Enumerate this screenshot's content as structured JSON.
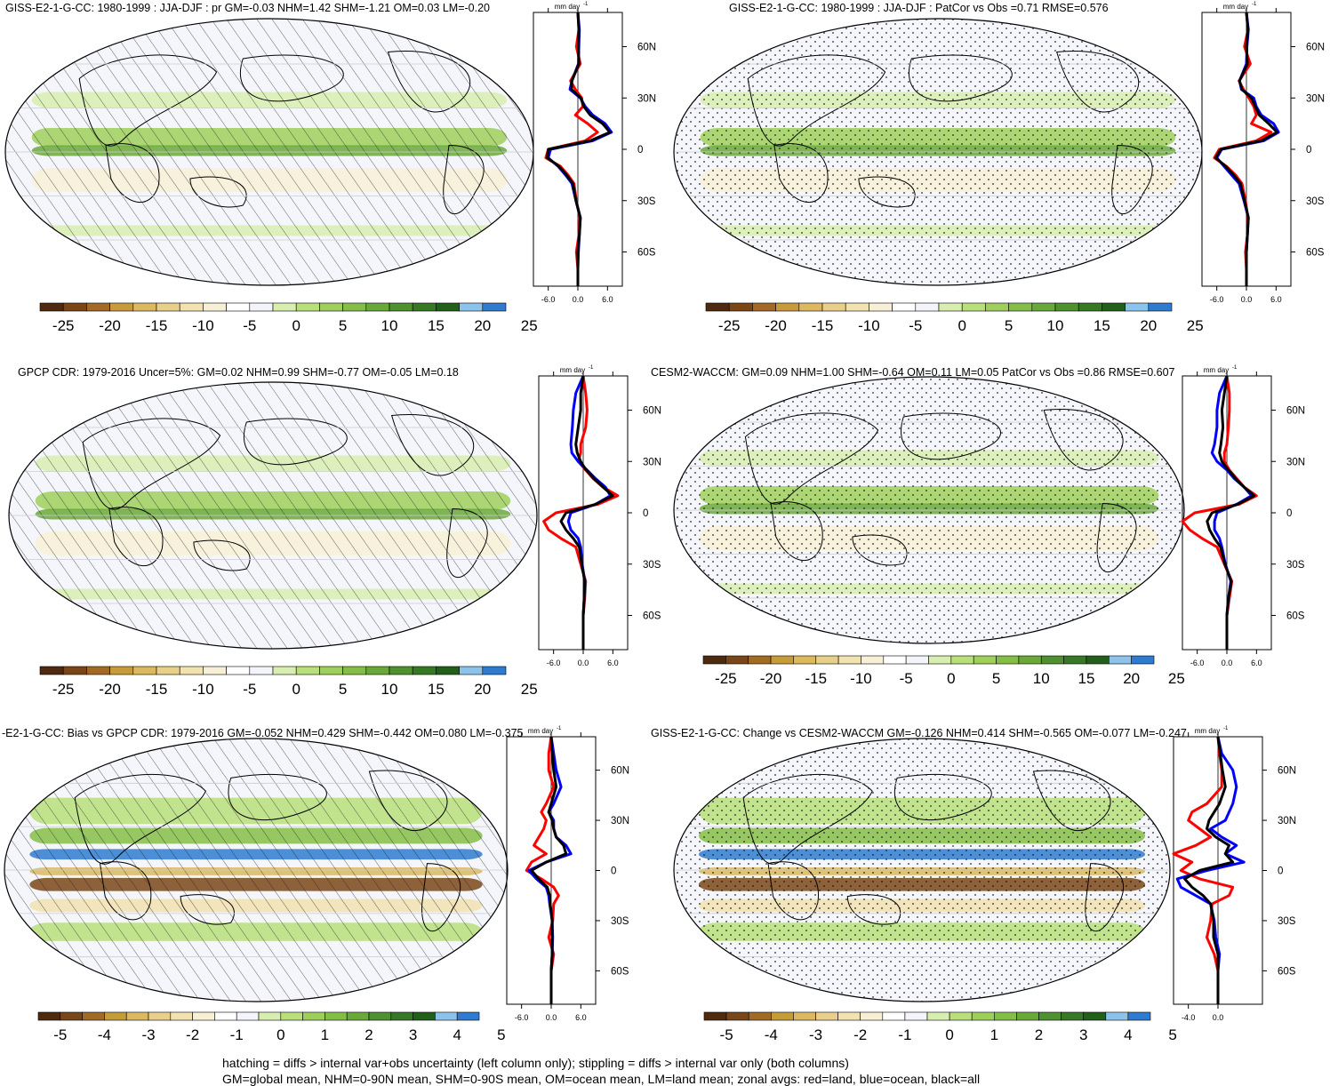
{
  "colors": {
    "land": "#ff0000",
    "ocean": "#0000ff",
    "all": "#000000",
    "bg": "#f5f6fb"
  },
  "palette": [
    "#4e2a11",
    "#7a4618",
    "#a36a26",
    "#c79a3a",
    "#dcb85e",
    "#e8d08a",
    "#f1e2b0",
    "#f8f0d6",
    "#ffffff",
    "#f3f5fb",
    "#d8eeb0",
    "#b9df7a",
    "#9fcf5b",
    "#85be47",
    "#6aa83a",
    "#4f902f",
    "#377824",
    "#225f1b",
    "#8cc3eb",
    "#2f7bcf"
  ],
  "panels": [
    {
      "title": "GISS-E2-1-G-CC: 1980-1999 : JJA-DJF : pr GM=-0.03 NHM=1.42 SHM=-1.21 OM=0.03 LM=-0.20",
      "units": "mm day",
      "units_sup": "-1",
      "colorbar_labels": [
        "-25",
        "-20",
        "-15",
        "-10",
        "-5",
        "0",
        "5",
        "10",
        "15",
        "20",
        "25"
      ],
      "zonal_xticks": [
        "-6.0",
        "0.0",
        "6.0"
      ],
      "lat_ticks": [
        "60N",
        "30N",
        "0",
        "30S",
        "60S"
      ],
      "overlay": "hatch"
    },
    {
      "title": "GISS-E2-1-G-CC: 1980-1999 : JJA-DJF : PatCor vs Obs =0.71 RMSE=0.576",
      "units": "mm day",
      "units_sup": "-1",
      "colorbar_labels": [
        "-25",
        "-20",
        "-15",
        "-10",
        "-5",
        "0",
        "5",
        "10",
        "15",
        "20",
        "25"
      ],
      "zonal_xticks": [
        "-6.0",
        "0.0",
        "6.0"
      ],
      "lat_ticks": [
        "60N",
        "30N",
        "0",
        "30S",
        "60S"
      ],
      "overlay": "stipple"
    },
    {
      "title": "GPCP CDR: 1979-2016 Uncer=5%: GM=0.02 NHM=0.99 SHM=-0.77 OM=-0.05 LM=0.18",
      "units": "mm day",
      "units_sup": "-1",
      "colorbar_labels": [
        "-25",
        "-20",
        "-15",
        "-10",
        "-5",
        "0",
        "5",
        "10",
        "15",
        "20",
        "25"
      ],
      "zonal_xticks": [
        "-6.0",
        "0.0",
        "6.0"
      ],
      "lat_ticks": [
        "60N",
        "30N",
        "0",
        "30S",
        "60S"
      ],
      "overlay": "hatch"
    },
    {
      "title": "CESM2-WACCM: GM=0.09 NHM=1.00 SHM=-0.64 OM=0.11 LM=0.05 PatCor vs Obs =0.86 RMSE=0.607",
      "units": "mm day",
      "units_sup": "-1",
      "colorbar_labels": [
        "-25",
        "-20",
        "-15",
        "-10",
        "-5",
        "0",
        "5",
        "10",
        "15",
        "20",
        "25"
      ],
      "zonal_xticks": [
        "-6.0",
        "0.0",
        "6.0"
      ],
      "lat_ticks": [
        "60N",
        "30N",
        "0",
        "30S",
        "60S"
      ],
      "overlay": "stipple"
    },
    {
      "title": "-E2-1-G-CC: Bias vs GPCP CDR: 1979-2016 GM=-0.052 NHM=0.429 SHM=-0.442 OM=0.080 LM=-0.375",
      "units": "mm day",
      "units_sup": "-1",
      "colorbar_labels": [
        "-5",
        "-4",
        "-3",
        "-2",
        "-1",
        "0",
        "1",
        "2",
        "3",
        "4",
        "5"
      ],
      "zonal_xticks": [
        "-6.0",
        "0.0",
        "6.0"
      ],
      "lat_ticks": [
        "60N",
        "30N",
        "0",
        "30S",
        "60S"
      ],
      "overlay": "hatch"
    },
    {
      "title": "GISS-E2-1-G-CC: Change vs CESM2-WACCM GM=-0.126 NHM=0.414 SHM=-0.565 OM=-0.077 LM=-0.247",
      "units": "mm day",
      "units_sup": "-1",
      "colorbar_labels": [
        "-5",
        "-4",
        "-3",
        "-2",
        "-1",
        "0",
        "1",
        "2",
        "3",
        "4",
        "5"
      ],
      "zonal_xticks": [
        "-4.0",
        "0.0"
      ],
      "lat_ticks": [
        "60N",
        "30N",
        "0",
        "30S",
        "60S"
      ],
      "overlay": "stipple"
    }
  ],
  "chart_data": [
    {
      "type": "line",
      "title": "GISS-E2-1-G-CC: 1980-1999 : JJA-DJF : pr GM=-0.03 NHM=1.42 SHM=-1.21 OM=0.03 LM=-0.20",
      "xlim": [
        -9,
        9
      ],
      "ylim": [
        -80,
        80
      ],
      "lat": [
        80,
        70,
        60,
        50,
        40,
        35,
        30,
        25,
        20,
        15,
        10,
        5,
        0,
        -5,
        -10,
        -15,
        -20,
        -30,
        -40,
        -50,
        -60,
        -70,
        -80
      ],
      "series": [
        {
          "values": [
            0,
            0.2,
            -0.3,
            0.5,
            -1.5,
            -0.5,
            0.8,
            1.0,
            -0.5,
            2.0,
            4.0,
            1.5,
            -6.0,
            -6.5,
            -3.5,
            -2.0,
            -0.8,
            -0.3,
            0.4,
            0.2,
            -0.3,
            0,
            0
          ]
        },
        {
          "values": [
            0,
            0.3,
            0.2,
            0.1,
            -1.2,
            -1.6,
            0.5,
            1.5,
            3.0,
            5.5,
            6.8,
            3.0,
            -5.5,
            -6.0,
            -4.0,
            -2.5,
            -1.2,
            -0.4,
            0.5,
            0.3,
            0.1,
            0,
            0
          ]
        },
        {
          "values": [
            0,
            0.2,
            0.1,
            0.2,
            -1.2,
            -1.3,
            0.6,
            1.2,
            2.5,
            5.0,
            6.5,
            2.5,
            -6.0,
            -6.2,
            -3.8,
            -2.3,
            -1.0,
            -0.4,
            0.5,
            0.3,
            0,
            0,
            0
          ]
        }
      ]
    },
    {
      "type": "line",
      "title": "GISS-E2-1-G-CC: 1980-1999 : JJA-DJF : PatCor vs Obs =0.71 RMSE=0.576",
      "xlim": [
        -9,
        9
      ],
      "ylim": [
        -80,
        80
      ],
      "lat": [
        80,
        70,
        60,
        50,
        40,
        35,
        30,
        25,
        20,
        15,
        10,
        5,
        0,
        -5,
        -10,
        -15,
        -20,
        -30,
        -40,
        -50,
        -60,
        -70,
        -80
      ],
      "series": [
        {
          "values": [
            0,
            0.3,
            -0.4,
            0.8,
            -1.5,
            -0.6,
            0.5,
            1.5,
            2.0,
            1.0,
            5.0,
            2.0,
            -5.5,
            -6.5,
            -4.0,
            -2.2,
            -0.9,
            -0.2,
            0.3,
            0.2,
            -0.2,
            0,
            0
          ]
        },
        {
          "values": [
            0,
            0.4,
            0.1,
            0.0,
            -1.4,
            -1.0,
            1.5,
            2.0,
            3.0,
            5.5,
            6.5,
            3.5,
            -5.0,
            -6.0,
            -4.5,
            -3.0,
            -1.5,
            -0.5,
            0.4,
            0.2,
            0,
            0,
            0
          ]
        },
        {
          "values": [
            0,
            0.3,
            0.0,
            0.2,
            -1.4,
            -0.9,
            1.0,
            1.8,
            2.6,
            4.5,
            6.2,
            3.0,
            -5.2,
            -6.2,
            -4.2,
            -2.6,
            -1.2,
            -0.4,
            0.4,
            0.2,
            0,
            0,
            0
          ]
        }
      ]
    },
    {
      "type": "line",
      "title": "GPCP CDR: 1979-2016 Uncer=5%: GM=0.02 NHM=0.99 SHM=-0.77 OM=-0.05 LM=0.18",
      "xlim": [
        -9,
        9
      ],
      "ylim": [
        -80,
        80
      ],
      "lat": [
        80,
        70,
        60,
        50,
        40,
        35,
        30,
        25,
        20,
        15,
        10,
        5,
        0,
        -5,
        -10,
        -15,
        -20,
        -30,
        -40,
        -50,
        -60,
        -70,
        -80
      ],
      "series": [
        {
          "values": [
            0,
            0.5,
            0.8,
            0.5,
            -0.5,
            -0.5,
            -1.0,
            0.5,
            2.0,
            4.0,
            7.0,
            3.0,
            -5.5,
            -8.0,
            -7.0,
            -4.5,
            -1.5,
            -0.5,
            0.5,
            0.3,
            0,
            0,
            0
          ]
        },
        {
          "values": [
            0,
            -1.5,
            -2.0,
            -2.2,
            -2.5,
            -2.3,
            -1.0,
            0.8,
            2.5,
            4.5,
            5.5,
            2.5,
            -2.5,
            -3.0,
            -2.5,
            -1.0,
            -0.5,
            -0.2,
            0.3,
            0.2,
            0,
            0,
            0
          ]
        },
        {
          "values": [
            0,
            -0.5,
            -0.5,
            -1.0,
            -1.5,
            -1.2,
            -0.5,
            0.6,
            2.2,
            4.0,
            6.0,
            2.5,
            -3.5,
            -4.5,
            -3.5,
            -2.0,
            -0.8,
            -0.3,
            0.3,
            0.2,
            0,
            0,
            0
          ]
        }
      ]
    },
    {
      "type": "line",
      "title": "CESM2-WACCM: GM=0.09 NHM=1.00 SHM=-0.64 OM=0.11 LM=0.05 PatCor vs Obs =0.86 RMSE=0.607",
      "xlim": [
        -9,
        9
      ],
      "ylim": [
        -80,
        80
      ],
      "lat": [
        80,
        70,
        60,
        50,
        40,
        35,
        30,
        25,
        20,
        15,
        10,
        5,
        0,
        -5,
        -10,
        -15,
        -20,
        -30,
        -40,
        -50,
        -60,
        -70,
        -80
      ],
      "series": [
        {
          "values": [
            0,
            0.5,
            0.5,
            0.3,
            0,
            -0.5,
            -0.5,
            0.5,
            2.0,
            3.5,
            6.0,
            2.5,
            -6.5,
            -9.0,
            -7.5,
            -5.0,
            -2.0,
            -0.5,
            1.0,
            0.5,
            0,
            0,
            0
          ]
        },
        {
          "values": [
            0,
            -1.5,
            -2.0,
            -2.0,
            -2.5,
            -3.0,
            -2.0,
            0,
            1.5,
            3.5,
            5.0,
            2.0,
            -2.0,
            -2.5,
            -2.5,
            -1.5,
            -1.0,
            -0.3,
            0.8,
            0.3,
            0,
            0,
            0
          ]
        },
        {
          "values": [
            0,
            -0.5,
            -1.0,
            -0.8,
            -1.2,
            -1.5,
            -1.0,
            0.3,
            1.8,
            3.5,
            5.5,
            2.2,
            -3.0,
            -4.0,
            -3.5,
            -2.5,
            -1.3,
            -0.4,
            0.9,
            0.3,
            0,
            0,
            0
          ]
        }
      ]
    },
    {
      "type": "line",
      "title": "-E2-1-G-CC: Bias vs GPCP CDR: 1979-2016 GM=-0.052 NHM=0.429 SHM=-0.442 OM=0.080 LM=-0.375",
      "xlim": [
        -9,
        9
      ],
      "ylim": [
        -80,
        80
      ],
      "lat": [
        80,
        70,
        60,
        50,
        40,
        35,
        30,
        25,
        20,
        15,
        10,
        5,
        0,
        -5,
        -10,
        -15,
        -20,
        -30,
        -40,
        -50,
        -60,
        -70,
        -80
      ],
      "series": [
        {
          "values": [
            0,
            -0.5,
            -0.5,
            0.5,
            -1.0,
            -2.0,
            -1.0,
            -1.5,
            -2.5,
            -3.5,
            -1.0,
            -4.0,
            -5.0,
            -2.0,
            0.5,
            1.5,
            0.5,
            0.3,
            -0.5,
            0.5,
            0,
            0,
            0
          ]
        },
        {
          "values": [
            0,
            0.5,
            1.0,
            2.0,
            0.5,
            -0.5,
            0.5,
            0.5,
            1.0,
            3.0,
            4.0,
            -1.0,
            -4.5,
            -3.0,
            -1.0,
            -0.5,
            -0.3,
            0.2,
            0.3,
            0.2,
            0,
            0,
            0
          ]
        },
        {
          "values": [
            0,
            0.2,
            0.5,
            1.0,
            0,
            -0.5,
            0.2,
            0.5,
            1.0,
            2.5,
            3.0,
            -1.0,
            -4.0,
            -2.5,
            -0.8,
            -0.3,
            -0.2,
            0.2,
            0.2,
            0.2,
            0,
            0,
            0
          ]
        }
      ]
    },
    {
      "type": "line",
      "title": "GISS-E2-1-G-CC: Change vs CESM2-WACCM GM=-0.126 NHM=0.414 SHM=-0.565 OM=-0.077 LM=-0.247",
      "xlim": [
        -6,
        6
      ],
      "ylim": [
        -80,
        80
      ],
      "lat": [
        80,
        70,
        60,
        50,
        40,
        35,
        30,
        25,
        20,
        15,
        10,
        5,
        0,
        -5,
        -10,
        -15,
        -20,
        -30,
        -40,
        -50,
        -60,
        -70,
        -80
      ],
      "series": [
        {
          "values": [
            0,
            0.2,
            0.5,
            0.5,
            -1.5,
            -3.5,
            -4.0,
            -2.5,
            -1.0,
            -3.0,
            -6.0,
            -3.5,
            -5.0,
            -2.5,
            2.0,
            1.5,
            -0.8,
            -1.0,
            -1.5,
            -0.5,
            0,
            0,
            0
          ]
        },
        {
          "values": [
            0,
            0.5,
            2.0,
            2.5,
            2.0,
            1.5,
            1.0,
            -1.0,
            0.5,
            2.5,
            1.0,
            3.5,
            -1.5,
            -5.5,
            -5.0,
            -3.0,
            -1.0,
            -0.5,
            -0.3,
            0.2,
            0,
            0,
            0
          ]
        },
        {
          "values": [
            0,
            0.3,
            0.6,
            1.0,
            0.2,
            -0.5,
            -1.2,
            -1.5,
            -0.3,
            1.5,
            1.0,
            2.0,
            -2.5,
            -4.5,
            -3.5,
            -2.0,
            -1.0,
            -0.6,
            -0.6,
            0,
            0,
            0,
            0
          ]
        }
      ]
    }
  ],
  "footer": {
    "line1": "hatching = diffs > internal var+obs uncertainty (left column only); stippling = diffs > internal var only (both columns)",
    "line2": "GM=global mean, NHM=0-90N mean, SHM=0-90S mean, OM=ocean mean, LM=land mean; zonal avgs: red=land, blue=ocean, black=all"
  }
}
